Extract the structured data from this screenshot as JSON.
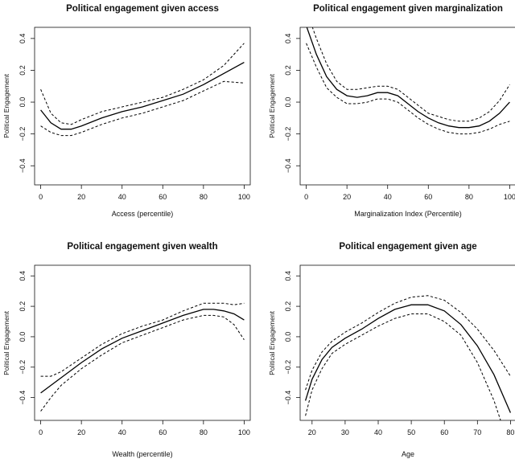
{
  "chart_data": [
    {
      "type": "line",
      "title": "Political engagement given access",
      "xlabel": "Access  (percentile)",
      "ylabel": "Political Engagement",
      "xlim": [
        -3,
        103
      ],
      "ylim": [
        -0.52,
        0.47
      ],
      "xticks": [
        0,
        20,
        40,
        60,
        80,
        100
      ],
      "yticks": [
        -0.4,
        -0.2,
        0.0,
        0.2,
        0.4
      ],
      "grid": false,
      "series": [
        {
          "role": "fit",
          "style": "solid",
          "x": [
            0,
            5,
            10,
            15,
            20,
            30,
            40,
            50,
            60,
            70,
            80,
            90,
            100
          ],
          "y": [
            -0.05,
            -0.13,
            -0.17,
            -0.17,
            -0.15,
            -0.1,
            -0.06,
            -0.03,
            0.01,
            0.05,
            0.11,
            0.18,
            0.25
          ]
        },
        {
          "role": "upper",
          "style": "dashed",
          "x": [
            0,
            5,
            10,
            15,
            20,
            30,
            40,
            50,
            60,
            70,
            80,
            90,
            100
          ],
          "y": [
            0.08,
            -0.07,
            -0.13,
            -0.14,
            -0.11,
            -0.06,
            -0.03,
            0.0,
            0.03,
            0.08,
            0.14,
            0.23,
            0.37
          ]
        },
        {
          "role": "lower",
          "style": "dashed",
          "x": [
            0,
            5,
            10,
            15,
            20,
            30,
            40,
            50,
            60,
            70,
            80,
            90,
            100
          ],
          "y": [
            -0.15,
            -0.19,
            -0.21,
            -0.21,
            -0.19,
            -0.14,
            -0.1,
            -0.07,
            -0.03,
            0.01,
            0.07,
            0.13,
            0.12
          ]
        }
      ]
    },
    {
      "type": "line",
      "title": "Political engagement given marginalization",
      "xlabel": "Marginalization Index (Percentile)",
      "ylabel": "Political Engagement",
      "xlim": [
        -3,
        103
      ],
      "ylim": [
        -0.52,
        0.47
      ],
      "xticks": [
        0,
        20,
        40,
        60,
        80,
        100
      ],
      "yticks": [
        -0.4,
        -0.2,
        0.0,
        0.2,
        0.4
      ],
      "grid": false,
      "series": [
        {
          "role": "fit",
          "style": "solid",
          "x": [
            0,
            5,
            10,
            15,
            20,
            25,
            30,
            35,
            40,
            45,
            50,
            55,
            60,
            65,
            70,
            75,
            80,
            85,
            90,
            95,
            100
          ],
          "y": [
            0.48,
            0.3,
            0.16,
            0.08,
            0.04,
            0.03,
            0.04,
            0.06,
            0.06,
            0.04,
            -0.01,
            -0.06,
            -0.1,
            -0.13,
            -0.15,
            -0.16,
            -0.16,
            -0.15,
            -0.12,
            -0.07,
            0.0
          ]
        },
        {
          "role": "upper",
          "style": "dashed",
          "x": [
            0,
            5,
            10,
            15,
            20,
            25,
            30,
            35,
            40,
            45,
            50,
            55,
            60,
            65,
            70,
            75,
            80,
            85,
            90,
            95,
            100
          ],
          "y": [
            0.58,
            0.4,
            0.24,
            0.13,
            0.08,
            0.08,
            0.09,
            0.1,
            0.1,
            0.08,
            0.03,
            -0.02,
            -0.07,
            -0.09,
            -0.11,
            -0.12,
            -0.12,
            -0.1,
            -0.06,
            0.01,
            0.11
          ]
        },
        {
          "role": "lower",
          "style": "dashed",
          "x": [
            0,
            5,
            10,
            15,
            20,
            25,
            30,
            35,
            40,
            45,
            50,
            55,
            60,
            65,
            70,
            75,
            80,
            85,
            90,
            95,
            100
          ],
          "y": [
            0.37,
            0.22,
            0.09,
            0.03,
            -0.01,
            -0.01,
            0.0,
            0.02,
            0.02,
            0.0,
            -0.05,
            -0.1,
            -0.14,
            -0.17,
            -0.19,
            -0.2,
            -0.2,
            -0.19,
            -0.17,
            -0.14,
            -0.12
          ]
        }
      ]
    },
    {
      "type": "line",
      "title": "Political engagement given wealth",
      "xlabel": "Wealth (percentile)",
      "ylabel": "Political Engagement",
      "xlim": [
        -3,
        103
      ],
      "ylim": [
        -0.55,
        0.47
      ],
      "xticks": [
        0,
        20,
        40,
        60,
        80,
        100
      ],
      "yticks": [
        -0.4,
        -0.2,
        0.0,
        0.2,
        0.4
      ],
      "grid": false,
      "series": [
        {
          "role": "fit",
          "style": "solid",
          "x": [
            0,
            10,
            20,
            30,
            40,
            50,
            60,
            70,
            80,
            85,
            90,
            95,
            100
          ],
          "y": [
            -0.37,
            -0.27,
            -0.17,
            -0.08,
            -0.01,
            0.04,
            0.09,
            0.14,
            0.18,
            0.18,
            0.17,
            0.15,
            0.11
          ]
        },
        {
          "role": "upper",
          "style": "dashed",
          "x": [
            0,
            5,
            10,
            20,
            30,
            40,
            50,
            60,
            70,
            80,
            85,
            90,
            95,
            100
          ],
          "y": [
            -0.26,
            -0.26,
            -0.23,
            -0.14,
            -0.05,
            0.02,
            0.07,
            0.11,
            0.17,
            0.22,
            0.22,
            0.22,
            0.21,
            0.22
          ]
        },
        {
          "role": "lower",
          "style": "dashed",
          "x": [
            0,
            5,
            10,
            20,
            30,
            40,
            50,
            60,
            70,
            80,
            85,
            90,
            95,
            100
          ],
          "y": [
            -0.49,
            -0.4,
            -0.32,
            -0.21,
            -0.12,
            -0.04,
            0.01,
            0.06,
            0.11,
            0.14,
            0.14,
            0.13,
            0.08,
            -0.02
          ]
        }
      ]
    },
    {
      "type": "line",
      "title": "Political engagement given  age",
      "xlabel": "Age",
      "ylabel": "Political Engagement",
      "xlim": [
        16.4,
        81.6
      ],
      "ylim": [
        -0.55,
        0.47
      ],
      "xticks": [
        20,
        30,
        40,
        50,
        60,
        70,
        80
      ],
      "yticks": [
        -0.4,
        -0.2,
        0.0,
        0.2,
        0.4
      ],
      "grid": false,
      "series": [
        {
          "role": "fit",
          "style": "solid",
          "x": [
            18,
            20,
            23,
            26,
            30,
            35,
            40,
            45,
            50,
            55,
            60,
            65,
            70,
            75,
            80
          ],
          "y": [
            -0.42,
            -0.28,
            -0.15,
            -0.07,
            -0.01,
            0.05,
            0.12,
            0.18,
            0.21,
            0.21,
            0.17,
            0.08,
            -0.06,
            -0.25,
            -0.5
          ]
        },
        {
          "role": "upper",
          "style": "dashed",
          "x": [
            18,
            20,
            23,
            26,
            30,
            35,
            40,
            45,
            50,
            55,
            60,
            65,
            70,
            75,
            80
          ],
          "y": [
            -0.35,
            -0.22,
            -0.1,
            -0.03,
            0.03,
            0.09,
            0.16,
            0.22,
            0.26,
            0.27,
            0.24,
            0.16,
            0.05,
            -0.09,
            -0.26
          ]
        },
        {
          "role": "lower",
          "style": "dashed",
          "x": [
            18,
            20,
            23,
            26,
            30,
            35,
            40,
            45,
            50,
            55,
            60,
            65,
            70,
            75,
            77
          ],
          "y": [
            -0.52,
            -0.35,
            -0.21,
            -0.11,
            -0.05,
            0.01,
            0.07,
            0.12,
            0.15,
            0.15,
            0.1,
            0.01,
            -0.17,
            -0.42,
            -0.55
          ]
        }
      ]
    }
  ]
}
